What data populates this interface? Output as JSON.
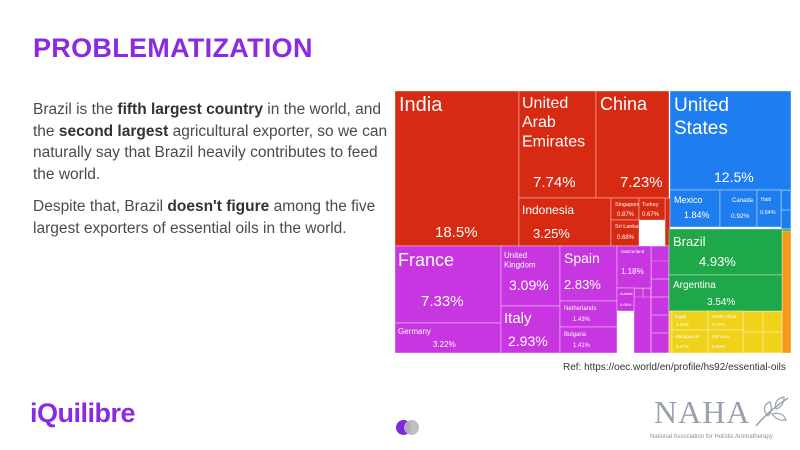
{
  "slide": {
    "title": "PROBLEMATIZATION",
    "paragraph1": [
      {
        "text": "Brazil is the ",
        "bold": false
      },
      {
        "text": "fifth largest country",
        "bold": true
      },
      {
        "text": " in the world, and the ",
        "bold": false
      },
      {
        "text": "second largest",
        "bold": true
      },
      {
        "text": " agricultural exporter, so we can naturally say that Brazil heavily contributes to feed the world.",
        "bold": false
      }
    ],
    "paragraph2": [
      {
        "text": "Despite that, Brazil ",
        "bold": false
      },
      {
        "text": "doesn't figure",
        "bold": true
      },
      {
        "text": " among the five largest exporters of essential oils in the world.",
        "bold": false
      }
    ],
    "reference": "Ref: https://oec.world/en/profile/hs92/essential-oils",
    "logo_text": "iQuilibre",
    "partner_logo": "NAHA",
    "partner_subtitle": "National Association for Holistic Aromatherapy"
  },
  "colors": {
    "accent": "#8a2be2",
    "asia": "#d62a12",
    "europe": "#c736e0",
    "north_america": "#1e7ef0",
    "south_america": "#1fa84a",
    "africa": "#f0d21a",
    "oceania": "#f59b1a"
  },
  "chart_data": {
    "type": "treemap",
    "title": "",
    "unit": "% of world essential-oil exports",
    "items": [
      {
        "label": "India",
        "value": 18.5,
        "group": "asia"
      },
      {
        "label": "United Arab Emirates",
        "value": 7.74,
        "group": "asia"
      },
      {
        "label": "China",
        "value": 7.23,
        "group": "asia"
      },
      {
        "label": "Indonesia",
        "value": 3.25,
        "group": "asia"
      },
      {
        "label": "Singapore",
        "value": 0.87,
        "group": "asia"
      },
      {
        "label": "Turkey",
        "value": 0.67,
        "group": "asia"
      },
      {
        "label": "Sri Lanka",
        "value": 0.68,
        "group": "asia"
      },
      {
        "label": "United States",
        "value": 12.5,
        "group": "north_america"
      },
      {
        "label": "Mexico",
        "value": 1.84,
        "group": "north_america"
      },
      {
        "label": "Canada",
        "value": 0.92,
        "group": "north_america"
      },
      {
        "label": "Haiti",
        "value": 0.64,
        "group": "north_america"
      },
      {
        "label": "Brazil",
        "value": 4.93,
        "group": "south_america"
      },
      {
        "label": "Argentina",
        "value": 3.54,
        "group": "south_america"
      },
      {
        "label": "France",
        "value": 7.33,
        "group": "europe"
      },
      {
        "label": "Germany",
        "value": 3.22,
        "group": "europe"
      },
      {
        "label": "United Kingdom",
        "value": 3.09,
        "group": "europe"
      },
      {
        "label": "Spain",
        "value": 2.83,
        "group": "europe"
      },
      {
        "label": "Italy",
        "value": 2.93,
        "group": "europe"
      },
      {
        "label": "Netherlands",
        "value": 1.43,
        "group": "europe"
      },
      {
        "label": "Bulgaria",
        "value": 1.41,
        "group": "europe"
      },
      {
        "label": "Switzerland",
        "value": 1.18,
        "group": "europe"
      },
      {
        "label": "Austria",
        "value": 0.65,
        "group": "europe"
      },
      {
        "label": "Egypt",
        "value": 1.02,
        "group": "africa"
      },
      {
        "label": "South Africa",
        "value": 0.72,
        "group": "africa"
      },
      {
        "label": "Madagascar",
        "value": 0.97,
        "group": "africa"
      },
      {
        "label": "Morocco",
        "value": 0.69,
        "group": "africa"
      }
    ]
  }
}
